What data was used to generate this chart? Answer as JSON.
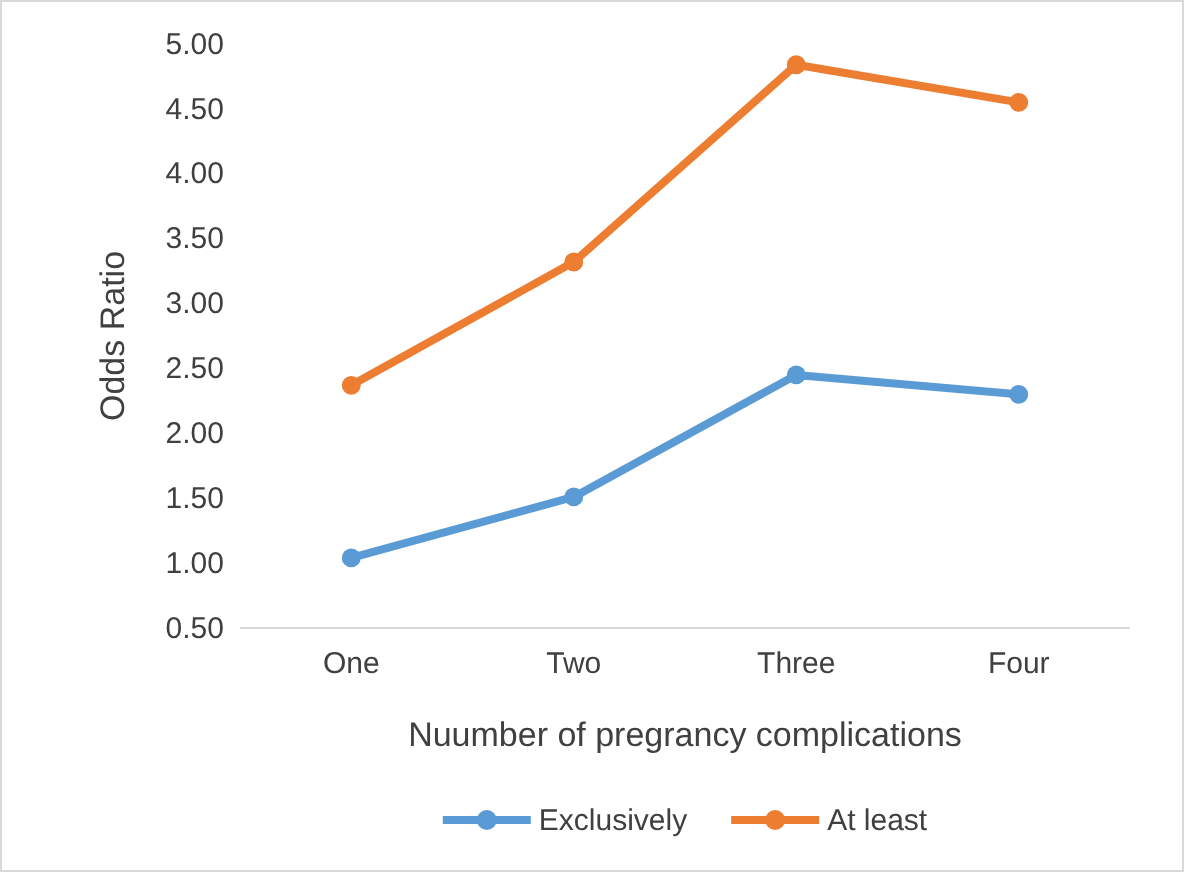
{
  "chart_data": {
    "type": "line",
    "xlabel": "Nuumber of pregrancy complications",
    "ylabel": "Odds Ratio",
    "categories": [
      "One",
      "Two",
      "Three",
      "Four"
    ],
    "series": [
      {
        "name": "Exclusively",
        "color": "#5b9bd5",
        "values": [
          1.04,
          1.51,
          2.45,
          2.3
        ]
      },
      {
        "name": "At least",
        "color": "#ed7d31",
        "values": [
          2.37,
          3.32,
          4.84,
          4.55
        ]
      }
    ],
    "ylim": [
      0.5,
      5.0
    ],
    "yticks": [
      {
        "value": 0.5,
        "label": "0.50"
      },
      {
        "value": 1.0,
        "label": "1.00"
      },
      {
        "value": 1.5,
        "label": "1.50"
      },
      {
        "value": 2.0,
        "label": "2.00"
      },
      {
        "value": 2.5,
        "label": "2.50"
      },
      {
        "value": 3.0,
        "label": "3.00"
      },
      {
        "value": 3.5,
        "label": "3.50"
      },
      {
        "value": 4.0,
        "label": "4.00"
      },
      {
        "value": 4.5,
        "label": "4.50"
      },
      {
        "value": 5.0,
        "label": "5.00"
      }
    ],
    "grid": false,
    "legend": "bottom",
    "marker": "circle",
    "line_style": "solid"
  }
}
